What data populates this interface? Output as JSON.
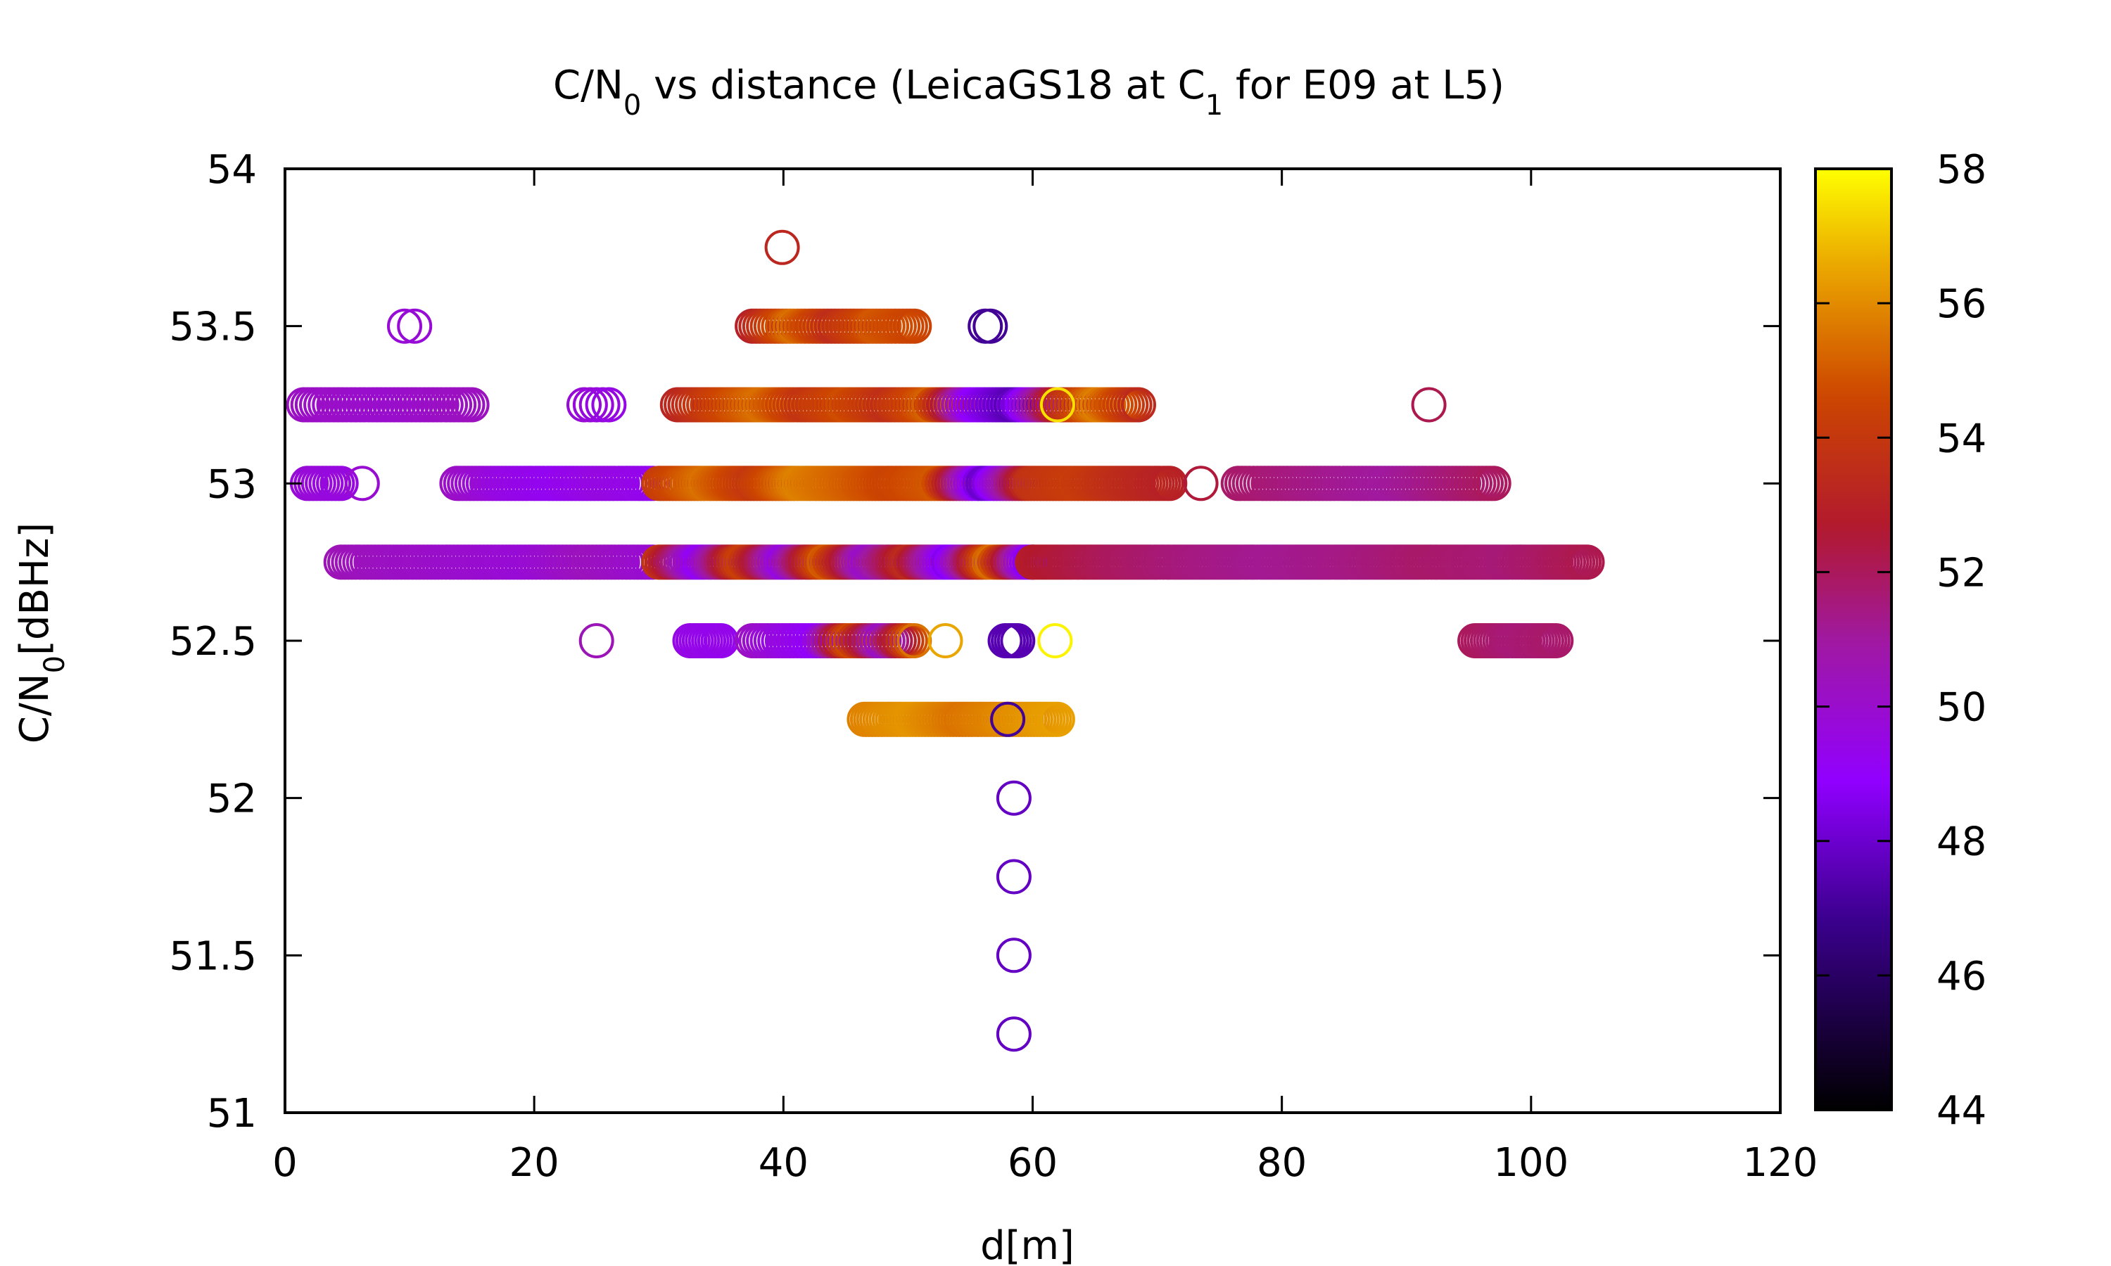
{
  "chart_data": {
    "type": "scatter",
    "title": {
      "prefix": "C/N",
      "sub": "0",
      "middle": " vs distance (LeicaGS18 at C",
      "sub2": "1",
      "suffix": " for E09 at L5)"
    },
    "xlabel": "d[m]",
    "ylabel": {
      "prefix": "C/N",
      "sub": "0",
      "suffix": "[dBHz]"
    },
    "xlim": [
      0,
      120
    ],
    "ylim": [
      51,
      54
    ],
    "xticks": [
      0,
      20,
      40,
      60,
      80,
      100,
      120
    ],
    "yticks": [
      51,
      51.5,
      52,
      52.5,
      53,
      53.5,
      54
    ],
    "ytick_labels": [
      "51",
      "51.5",
      "52",
      "52.5",
      "53",
      "53.5",
      "54"
    ],
    "colorbar": {
      "range": [
        44,
        58
      ],
      "ticks": [
        44,
        46,
        48,
        50,
        52,
        54,
        56,
        58
      ],
      "palette": "gnuplot (black-purple-red-orange-yellow)"
    },
    "marker": "open-circle",
    "grid": false,
    "groups": [
      {
        "y": 53.75,
        "x_start": 39.9,
        "x_end": 39.9,
        "step": 1,
        "c": [
          53.3,
          53.3
        ]
      },
      {
        "y": 53.5,
        "x_start": 9.6,
        "x_end": 10.4,
        "step": 0.8,
        "c": [
          49.8,
          49.8
        ]
      },
      {
        "y": 53.5,
        "x_start": 37.5,
        "x_end": 50.5,
        "step": 0.3,
        "c": [
          53.0,
          55.5,
          53.5,
          55.0,
          54.5
        ]
      },
      {
        "y": 53.5,
        "x_start": 56.2,
        "x_end": 56.6,
        "step": 0.4,
        "c": [
          47.0,
          47.0
        ]
      },
      {
        "y": 53.25,
        "x_start": 1.5,
        "x_end": 15.0,
        "step": 0.35,
        "c": [
          50.2,
          50.0,
          50.3
        ]
      },
      {
        "y": 53.25,
        "x_start": 24.0,
        "x_end": 26.0,
        "step": 0.5,
        "c": [
          49.8,
          49.5
        ]
      },
      {
        "y": 53.25,
        "x_start": 31.5,
        "x_end": 68.5,
        "step": 0.3,
        "c": [
          53.2,
          54.5,
          55.5,
          53.8,
          54.8,
          53.6,
          55.2,
          49.0,
          47.5,
          53.2,
          55.8,
          53.4
        ]
      },
      {
        "y": 53.25,
        "x_start": 62.0,
        "x_end": 62.0,
        "step": 1,
        "c": [
          57.5,
          57.5
        ]
      },
      {
        "y": 53.25,
        "x_start": 91.8,
        "x_end": 91.8,
        "step": 1,
        "c": [
          52.2,
          52.2
        ]
      },
      {
        "y": 53.0,
        "x_start": 1.8,
        "x_end": 4.5,
        "step": 0.3,
        "c": [
          49.8,
          49.6
        ]
      },
      {
        "y": 53.0,
        "x_start": 6.2,
        "x_end": 6.2,
        "step": 1,
        "c": [
          49.9,
          49.9
        ]
      },
      {
        "y": 53.0,
        "x_start": 13.8,
        "x_end": 29.5,
        "step": 0.3,
        "c": [
          50.2,
          49.5,
          49.2,
          49.6,
          49.3
        ]
      },
      {
        "y": 53.0,
        "x_start": 30.0,
        "x_end": 71.0,
        "step": 0.25,
        "c": [
          54.2,
          55.5,
          54.0,
          55.8,
          55.2,
          54.5,
          55.0,
          47.8,
          53.8,
          54.2,
          53.5,
          53.0
        ]
      },
      {
        "y": 53.0,
        "x_start": 73.5,
        "x_end": 73.5,
        "step": 1,
        "c": [
          52.5,
          52.5
        ]
      },
      {
        "y": 53.0,
        "x_start": 76.5,
        "x_end": 97.0,
        "step": 0.3,
        "c": [
          51.8,
          51.5,
          51.2,
          51.0,
          51.5,
          52.0
        ]
      },
      {
        "y": 52.75,
        "x_start": 4.5,
        "x_end": 29.5,
        "step": 0.3,
        "c": [
          50.5,
          50.2,
          50.0,
          49.8,
          50.4,
          49.9
        ]
      },
      {
        "y": 52.75,
        "x_start": 30.0,
        "x_end": 60.0,
        "step": 0.25,
        "c": [
          53.8,
          49.0,
          54.5,
          49.5,
          55.2,
          50.0,
          53.5,
          48.5,
          55.6,
          48.2
        ]
      },
      {
        "y": 52.75,
        "x_start": 60.0,
        "x_end": 104.5,
        "step": 0.25,
        "c": [
          52.8,
          52.0,
          51.5,
          51.2,
          51.4,
          51.8,
          51.6,
          52.2
        ]
      },
      {
        "y": 52.5,
        "x_start": 25.0,
        "x_end": 25.0,
        "step": 1,
        "c": [
          50.5,
          50.5
        ]
      },
      {
        "y": 52.5,
        "x_start": 32.5,
        "x_end": 35.0,
        "step": 0.25,
        "c": [
          49.5,
          49.3
        ]
      },
      {
        "y": 52.5,
        "x_start": 37.5,
        "x_end": 50.5,
        "step": 0.3,
        "c": [
          50.2,
          49.5,
          49.0,
          54.8,
          50.0,
          55.5
        ]
      },
      {
        "y": 52.5,
        "x_start": 53.0,
        "x_end": 53.0,
        "step": 1,
        "c": [
          56.5,
          56.5
        ]
      },
      {
        "y": 52.5,
        "x_start": 57.8,
        "x_end": 58.8,
        "step": 0.25,
        "c": [
          47.5,
          47.5
        ]
      },
      {
        "y": 52.5,
        "x_start": 61.8,
        "x_end": 61.8,
        "step": 1,
        "c": [
          57.8,
          57.8
        ]
      },
      {
        "y": 52.5,
        "x_start": 95.5,
        "x_end": 102.0,
        "step": 0.25,
        "c": [
          52.0,
          51.6,
          51.8
        ]
      },
      {
        "y": 52.25,
        "x_start": 46.5,
        "x_end": 62.0,
        "step": 0.25,
        "c": [
          55.8,
          56.2,
          55.5,
          56.0,
          56.4
        ]
      },
      {
        "y": 52.25,
        "x_start": 58.0,
        "x_end": 58.0,
        "step": 1,
        "c": [
          47.0,
          47.0
        ]
      },
      {
        "y": 52.0,
        "x_start": 58.5,
        "x_end": 58.5,
        "step": 1,
        "c": [
          47.8,
          47.8
        ]
      },
      {
        "y": 51.75,
        "x_start": 58.5,
        "x_end": 58.5,
        "step": 1,
        "c": [
          47.8,
          47.8
        ]
      },
      {
        "y": 51.5,
        "x_start": 58.5,
        "x_end": 58.5,
        "step": 1,
        "c": [
          47.8,
          47.8
        ]
      },
      {
        "y": 51.25,
        "x_start": 58.5,
        "x_end": 58.5,
        "step": 1,
        "c": [
          47.8,
          47.8
        ]
      }
    ]
  }
}
